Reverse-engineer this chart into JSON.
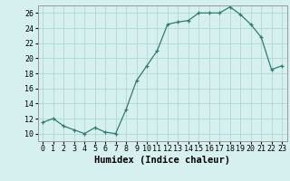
{
  "x": [
    0,
    1,
    2,
    3,
    4,
    5,
    6,
    7,
    8,
    9,
    10,
    11,
    12,
    13,
    14,
    15,
    16,
    17,
    18,
    19,
    20,
    21,
    22,
    23
  ],
  "y": [
    11.5,
    12.0,
    11.0,
    10.5,
    10.0,
    10.8,
    10.2,
    10.0,
    13.2,
    17.0,
    19.0,
    21.0,
    24.5,
    24.8,
    25.0,
    26.0,
    26.0,
    26.0,
    26.8,
    25.8,
    24.5,
    22.8,
    18.5,
    19.0
  ],
  "line_color": "#2e7d6e",
  "marker": "+",
  "bg_color": "#d6f0f0",
  "grid_color": "#b0d8d8",
  "xlabel": "Humidex (Indice chaleur)",
  "xlim": [
    -0.5,
    23.5
  ],
  "ylim": [
    9,
    27
  ],
  "yticks": [
    10,
    12,
    14,
    16,
    18,
    20,
    22,
    24,
    26
  ],
  "xticks": [
    0,
    1,
    2,
    3,
    4,
    5,
    6,
    7,
    8,
    9,
    10,
    11,
    12,
    13,
    14,
    15,
    16,
    17,
    18,
    19,
    20,
    21,
    22,
    23
  ],
  "tick_fontsize": 6,
  "xlabel_fontsize": 7.5
}
